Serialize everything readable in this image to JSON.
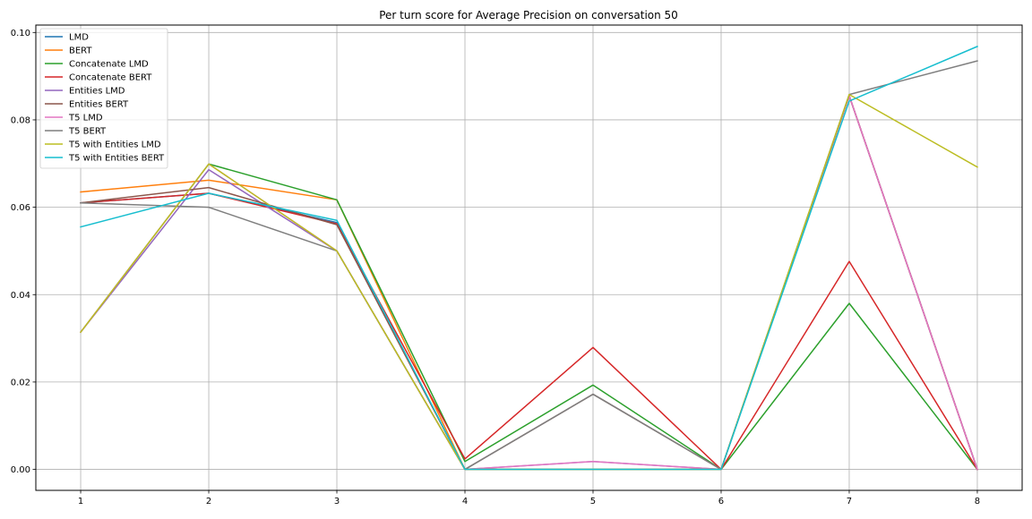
{
  "chart_data": {
    "type": "line",
    "title": "Per turn score for Average Precision on conversation 50",
    "xlabel": "",
    "ylabel": "",
    "x": [
      1,
      2,
      3,
      4,
      5,
      6,
      7,
      8
    ],
    "xlim": [
      0.65,
      8.35
    ],
    "ylim": [
      -0.0048,
      0.1017
    ],
    "yticks": [
      0.0,
      0.02,
      0.04,
      0.06,
      0.08,
      0.1
    ],
    "ytick_labels": [
      "0.00",
      "0.02",
      "0.04",
      "0.06",
      "0.08",
      "0.10"
    ],
    "xticks": [
      1,
      2,
      3,
      4,
      5,
      6,
      7,
      8
    ],
    "xtick_labels": [
      "1",
      "2",
      "3",
      "4",
      "5",
      "6",
      "7",
      "8"
    ],
    "grid": true,
    "legend_position": "top-left",
    "series": [
      {
        "name": "LMD",
        "color": "#1f77b4",
        "values": [
          0.061,
          0.0632,
          0.0565,
          0.0,
          0.0,
          0.0,
          0.0855,
          0.0
        ]
      },
      {
        "name": "BERT",
        "color": "#ff7f0e",
        "values": [
          0.0635,
          0.0662,
          0.0617,
          0.0,
          0.0,
          0.0,
          0.0855,
          0.0
        ]
      },
      {
        "name": "Concatenate LMD",
        "color": "#2ca02c",
        "values": [
          0.0314,
          0.0699,
          0.0617,
          0.0018,
          0.0193,
          0.0,
          0.038,
          0.0
        ]
      },
      {
        "name": "Concatenate BERT",
        "color": "#d62728",
        "values": [
          0.061,
          0.0632,
          0.0562,
          0.0024,
          0.0279,
          0.0,
          0.0476,
          0.0
        ]
      },
      {
        "name": "Entities LMD",
        "color": "#9467bd",
        "values": [
          0.0314,
          0.0686,
          0.05,
          0.0,
          0.0018,
          0.0,
          0.0855,
          0.0
        ]
      },
      {
        "name": "Entities BERT",
        "color": "#8c564b",
        "values": [
          0.061,
          0.0645,
          0.056,
          0.0,
          0.0172,
          0.0,
          0.0855,
          0.0
        ]
      },
      {
        "name": "T5 LMD",
        "color": "#e377c2",
        "values": [
          0.0314,
          0.0699,
          0.05,
          0.0,
          0.0018,
          0.0,
          0.0855,
          0.0
        ]
      },
      {
        "name": "T5 BERT",
        "color": "#7f7f7f",
        "values": [
          0.061,
          0.06,
          0.05,
          0.0,
          0.0172,
          0.0,
          0.0858,
          0.0935
        ]
      },
      {
        "name": "T5 with Entities LMD",
        "color": "#bcbd22",
        "values": [
          0.0314,
          0.0699,
          0.05,
          0.0,
          0.0,
          0.0,
          0.0858,
          0.0692
        ]
      },
      {
        "name": "T5 with Entities BERT",
        "color": "#17becf",
        "values": [
          0.0555,
          0.0632,
          0.057,
          0.0,
          0.0,
          0.0,
          0.0843,
          0.0968
        ]
      }
    ]
  }
}
